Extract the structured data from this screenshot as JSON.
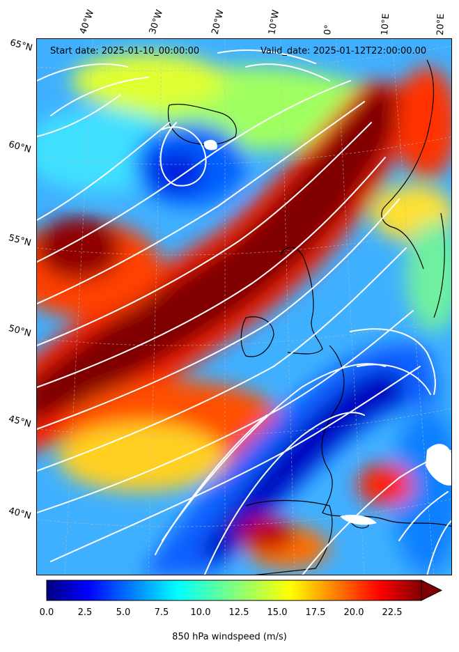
{
  "header": {
    "start_date": "Start date: 2025-01-10_00:00:00",
    "valid_date": "Valid_date: 2025-01-12T22:00:00.00"
  },
  "longitude_labels": [
    "40°W",
    "30°W",
    "20°W",
    "10°W",
    "0°",
    "10°E",
    "20°E"
  ],
  "latitude_labels": [
    "65°N",
    "60°N",
    "55°N",
    "50°N",
    "45°N",
    "40°N"
  ],
  "colorbar": {
    "title": "850 hPa windspeed (m/s)",
    "ticks": [
      "0.0",
      "2.5",
      "5.0",
      "7.5",
      "10.0",
      "12.5",
      "15.0",
      "17.5",
      "20.0",
      "22.5"
    ],
    "min": 0,
    "max": 25.5,
    "extend": "max",
    "colormap": "jet",
    "colors": [
      "#00007f",
      "#0000ff",
      "#007fff",
      "#00ffff",
      "#7fff7f",
      "#ffff00",
      "#ff7f00",
      "#ff0000",
      "#7f0000"
    ]
  },
  "map": {
    "field": "850 hPa windspeed",
    "units": "m/s",
    "overlay": "white streamlines",
    "coastline_color": "#000000",
    "gridlines": "dashed"
  }
}
